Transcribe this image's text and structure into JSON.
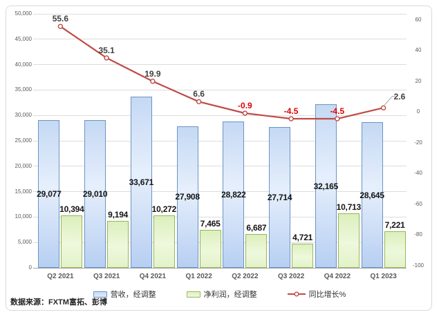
{
  "card": {
    "source_note": "数据来源：FXTM富拓、彭博"
  },
  "chart_data": {
    "type": "combo-bar-line",
    "title": "",
    "categories": [
      "Q2 2021",
      "Q3 2021",
      "Q4 2021",
      "Q1 2022",
      "Q2 2022",
      "Q3 2022",
      "Q4 2022",
      "Q1 2023"
    ],
    "series": [
      {
        "name": "营收，经调整",
        "type": "bar",
        "axis": "left",
        "color": "#6b93c3",
        "values": [
          29077,
          29010,
          33671,
          27908,
          28822,
          27714,
          32165,
          28645
        ],
        "labels": [
          "29,077",
          "29,010",
          "33,671",
          "27,908",
          "28,822",
          "27,714",
          "32,165",
          "28,645"
        ]
      },
      {
        "name": "净利润，经调整",
        "type": "bar",
        "axis": "left",
        "color": "#97b657",
        "values": [
          10394,
          9194,
          10272,
          7465,
          6687,
          4721,
          10713,
          7221
        ],
        "labels": [
          "10,394",
          "9,194",
          "10,272",
          "7,465",
          "6,687",
          "4,721",
          "10,713",
          "7,221"
        ]
      },
      {
        "name": "同比增长%",
        "type": "line",
        "axis": "right",
        "color": "#bf4a45",
        "values": [
          55.6,
          35.1,
          19.9,
          6.6,
          -0.9,
          -4.5,
          -4.5,
          2.6
        ],
        "labels": [
          "55.6",
          "35.1",
          "19.9",
          "6.6",
          "-0.9",
          "-4.5",
          "-4.5",
          "2.6"
        ]
      }
    ],
    "left_axis": {
      "min": 0,
      "max": 50000,
      "step": 5000,
      "ticks": [
        0,
        5000,
        10000,
        15000,
        20000,
        25000,
        30000,
        35000,
        40000,
        45000,
        50000
      ],
      "tick_labels": [
        "0",
        "5,000",
        "10,000",
        "15,000",
        "20,000",
        "25,000",
        "30,000",
        "35,000",
        "40,000",
        "45,000",
        "50,000"
      ]
    },
    "right_axis": {
      "min": -100,
      "max": 60,
      "step": 20,
      "ticks": [
        -100,
        -80,
        -60,
        -40,
        -20,
        0,
        20,
        40,
        60
      ],
      "tick_labels": [
        "-100",
        "-80",
        "-60",
        "-40",
        "-20",
        "0",
        "20",
        "40",
        "60"
      ]
    },
    "grid": true,
    "legend_position": "bottom",
    "label_colors": {
      "bar_label": "#141414",
      "line_label_positive": "#404040",
      "line_label_negative": "#e00000"
    }
  }
}
